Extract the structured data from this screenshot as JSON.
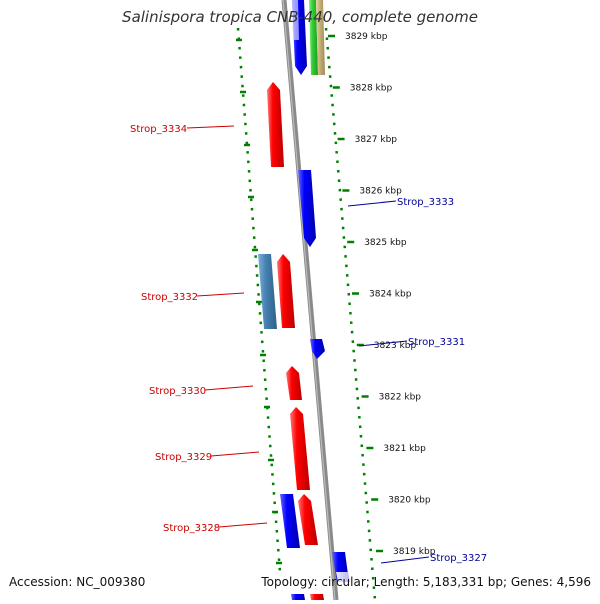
{
  "title": "Salinispora tropica CNB-440, complete genome",
  "accession": "Accession: NC_009380",
  "summary": "Topology: circular; Length: 5,183,331 bp; Genes: 4,596",
  "colors": {
    "backbone": "#8a8a8a",
    "forward_gene": "#0000ff",
    "reverse_gene": "#ff0000",
    "steelblue_gene": "#4682b4",
    "green_gene": "#33cc33",
    "tan_gene": "#c8b27a",
    "ruler": "#008000",
    "reverse_label": "#cc0000",
    "forward_label": "#000099"
  },
  "ticks": [
    {
      "label": "3829 kbp",
      "kbp": 3829
    },
    {
      "label": "3828 kbp",
      "kbp": 3828
    },
    {
      "label": "3827 kbp",
      "kbp": 3827
    },
    {
      "label": "3826 kbp",
      "kbp": 3826
    },
    {
      "label": "3825 kbp",
      "kbp": 3825
    },
    {
      "label": "3824 kbp",
      "kbp": 3824
    },
    {
      "label": "3823 kbp",
      "kbp": 3823
    },
    {
      "label": "3822 kbp",
      "kbp": 3822
    },
    {
      "label": "3821 kbp",
      "kbp": 3821
    },
    {
      "label": "3820 kbp",
      "kbp": 3820
    },
    {
      "label": "3819 kbp",
      "kbp": 3819
    }
  ],
  "gene_labels": [
    {
      "text": "Strop_3334",
      "strand": "reverse"
    },
    {
      "text": "Strop_3333",
      "strand": "forward"
    },
    {
      "text": "Strop_3332",
      "strand": "reverse"
    },
    {
      "text": "Strop_3331",
      "strand": "forward"
    },
    {
      "text": "Strop_3330",
      "strand": "reverse"
    },
    {
      "text": "Strop_3329",
      "strand": "reverse"
    },
    {
      "text": "Strop_3328",
      "strand": "reverse"
    },
    {
      "text": "Strop_3327",
      "strand": "forward"
    }
  ]
}
